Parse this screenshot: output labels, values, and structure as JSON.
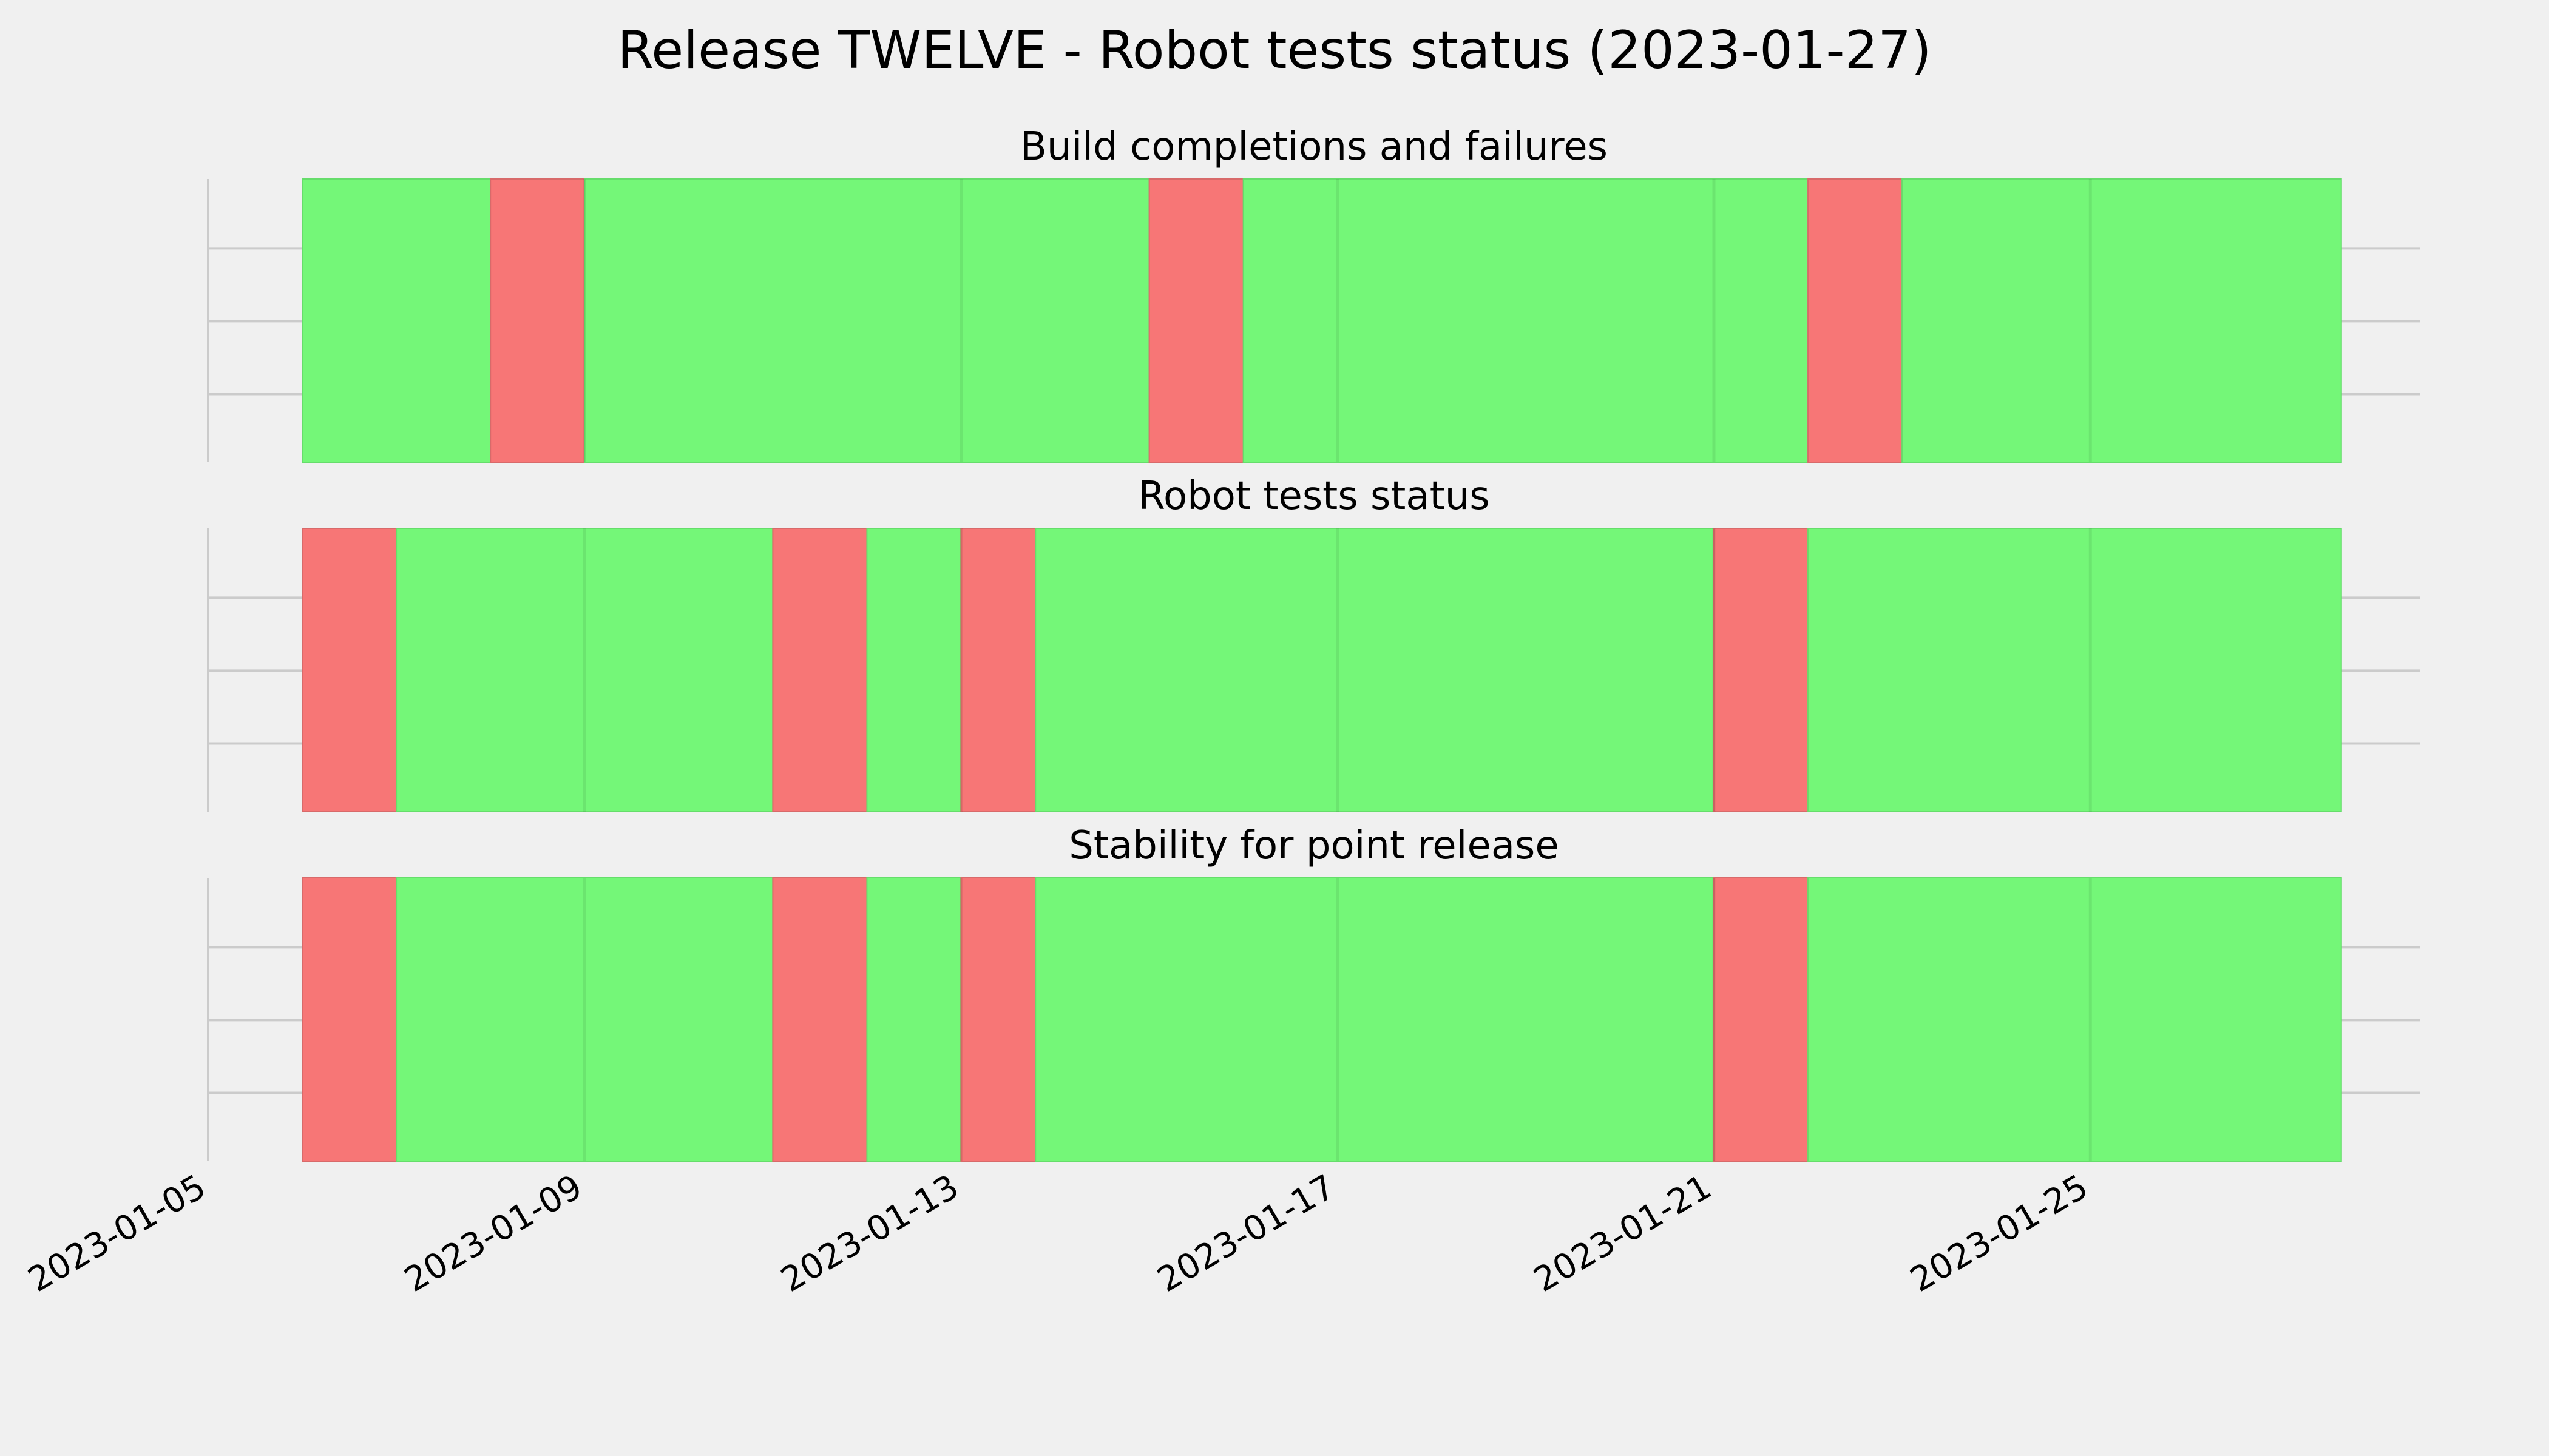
{
  "title": "Release TWELVE - Robot tests status (2023-01-27)",
  "colors": {
    "background": "#f0f0f0",
    "pass": "#74f778",
    "fail": "#f77676",
    "grid": "#cbcbcb"
  },
  "chart_data": [
    {
      "type": "timeline",
      "title": "Build completions and failures",
      "x_axis_type": "date",
      "xlim": [
        "2023-01-05",
        "2023-01-28T12:00"
      ],
      "xticks": [
        "2023-01-05",
        "2023-01-09",
        "2023-01-13",
        "2023-01-17",
        "2023-01-21",
        "2023-01-25"
      ],
      "grid": true,
      "segments": [
        {
          "start": "2023-01-06",
          "end": "2023-01-08",
          "status": "pass"
        },
        {
          "start": "2023-01-08",
          "end": "2023-01-09",
          "status": "fail"
        },
        {
          "start": "2023-01-09",
          "end": "2023-01-15",
          "status": "pass"
        },
        {
          "start": "2023-01-15",
          "end": "2023-01-16",
          "status": "fail"
        },
        {
          "start": "2023-01-16",
          "end": "2023-01-22",
          "status": "pass"
        },
        {
          "start": "2023-01-22",
          "end": "2023-01-23",
          "status": "fail"
        },
        {
          "start": "2023-01-23",
          "end": "2023-01-27T16:00",
          "status": "pass"
        }
      ]
    },
    {
      "type": "timeline",
      "title": "Robot tests status",
      "x_axis_type": "date",
      "xlim": [
        "2023-01-05",
        "2023-01-28T12:00"
      ],
      "xticks": [
        "2023-01-05",
        "2023-01-09",
        "2023-01-13",
        "2023-01-17",
        "2023-01-21",
        "2023-01-25"
      ],
      "grid": true,
      "segments": [
        {
          "start": "2023-01-06",
          "end": "2023-01-07",
          "status": "fail"
        },
        {
          "start": "2023-01-07",
          "end": "2023-01-11",
          "status": "pass"
        },
        {
          "start": "2023-01-11",
          "end": "2023-01-12",
          "status": "fail"
        },
        {
          "start": "2023-01-12",
          "end": "2023-01-13",
          "status": "pass"
        },
        {
          "start": "2023-01-13",
          "end": "2023-01-13T19:00",
          "status": "fail"
        },
        {
          "start": "2023-01-13T19:00",
          "end": "2023-01-21",
          "status": "pass"
        },
        {
          "start": "2023-01-21",
          "end": "2023-01-22",
          "status": "fail"
        },
        {
          "start": "2023-01-22",
          "end": "2023-01-27T16:00",
          "status": "pass"
        }
      ]
    },
    {
      "type": "timeline",
      "title": "Stability for point release",
      "x_axis_type": "date",
      "xlim": [
        "2023-01-05",
        "2023-01-28T12:00"
      ],
      "xticks": [
        "2023-01-05",
        "2023-01-09",
        "2023-01-13",
        "2023-01-17",
        "2023-01-21",
        "2023-01-25"
      ],
      "grid": true,
      "segments": [
        {
          "start": "2023-01-06",
          "end": "2023-01-07",
          "status": "fail"
        },
        {
          "start": "2023-01-07",
          "end": "2023-01-11",
          "status": "pass"
        },
        {
          "start": "2023-01-11",
          "end": "2023-01-12",
          "status": "fail"
        },
        {
          "start": "2023-01-12",
          "end": "2023-01-13",
          "status": "pass"
        },
        {
          "start": "2023-01-13",
          "end": "2023-01-13T19:00",
          "status": "fail"
        },
        {
          "start": "2023-01-13T19:00",
          "end": "2023-01-21",
          "status": "pass"
        },
        {
          "start": "2023-01-21",
          "end": "2023-01-22",
          "status": "fail"
        },
        {
          "start": "2023-01-22",
          "end": "2023-01-27T16:00",
          "status": "pass"
        }
      ]
    }
  ]
}
